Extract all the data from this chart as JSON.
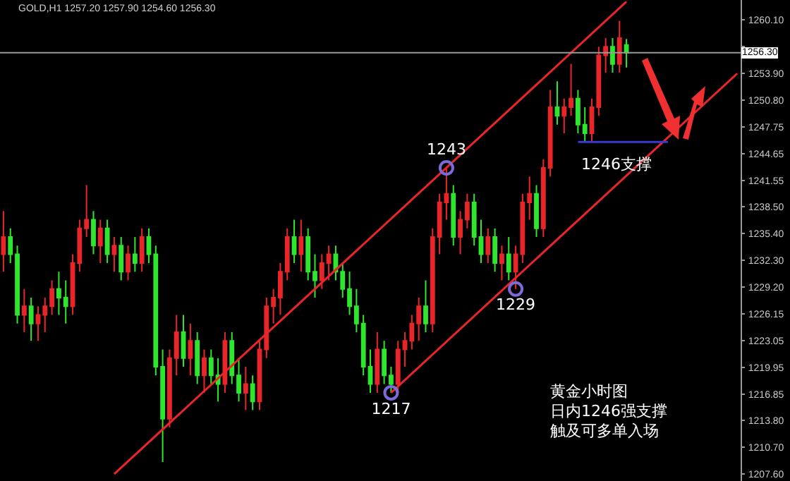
{
  "chart_data": {
    "type": "candlestick",
    "title": "GOLD,H1 1257.20 1257.90 1254.60 1256.30",
    "categories": [
      null,
      null,
      null,
      null,
      null,
      null,
      null,
      null,
      null,
      null,
      null,
      null,
      null,
      null,
      null,
      null,
      null,
      null,
      null,
      null,
      null,
      null,
      null,
      null,
      null,
      null,
      null,
      null,
      null,
      null,
      null,
      null,
      null,
      null,
      null,
      null,
      null,
      null,
      null,
      null,
      null,
      null,
      null,
      null,
      null,
      null,
      null,
      null,
      null,
      null,
      null,
      null,
      null,
      null,
      null,
      null,
      null,
      null,
      null,
      null,
      null,
      null,
      null,
      null,
      null,
      null,
      null,
      null,
      null,
      null,
      null,
      null,
      null,
      null,
      null,
      null,
      null,
      null,
      null,
      null,
      null,
      null,
      null,
      null,
      null,
      null,
      null,
      null,
      null,
      null,
      null,
      null,
      null,
      null,
      null,
      null,
      null,
      null,
      null,
      null,
      null,
      null,
      null,
      null,
      null,
      null,
      null
    ],
    "ohlc": [
      [
        1233,
        1238,
        1231,
        1235
      ],
      [
        1235,
        1236,
        1232,
        1233
      ],
      [
        1233,
        1234,
        1225,
        1226
      ],
      [
        1226,
        1229,
        1224,
        1227
      ],
      [
        1227,
        1228,
        1223,
        1225
      ],
      [
        1225,
        1227,
        1223,
        1226
      ],
      [
        1226,
        1228,
        1224,
        1227
      ],
      [
        1227,
        1230,
        1226,
        1229
      ],
      [
        1229,
        1231,
        1226,
        1228
      ],
      [
        1228,
        1230,
        1225,
        1227
      ],
      [
        1227,
        1233,
        1226,
        1232
      ],
      [
        1232,
        1237,
        1231,
        1236
      ],
      [
        1236,
        1241,
        1235,
        1237
      ],
      [
        1237,
        1238,
        1233,
        1234
      ],
      [
        1234,
        1237,
        1232,
        1236
      ],
      [
        1236,
        1237,
        1232,
        1233
      ],
      [
        1233,
        1235,
        1231,
        1234
      ],
      [
        1234,
        1235,
        1230,
        1231
      ],
      [
        1231,
        1234,
        1230,
        1233
      ],
      [
        1233,
        1235,
        1231,
        1232
      ],
      [
        1232,
        1236,
        1231,
        1235
      ],
      [
        1235,
        1236,
        1232,
        1233
      ],
      [
        1233,
        1234,
        1219,
        1220
      ],
      [
        1220,
        1222,
        1209,
        1214
      ],
      [
        1214,
        1222,
        1213,
        1221
      ],
      [
        1221,
        1226,
        1219,
        1224
      ],
      [
        1224,
        1226,
        1220,
        1221
      ],
      [
        1221,
        1225,
        1219,
        1223
      ],
      [
        1223,
        1224,
        1218,
        1219
      ],
      [
        1219,
        1222,
        1217,
        1221
      ],
      [
        1221,
        1222,
        1218,
        1219
      ],
      [
        1219,
        1221,
        1216,
        1218
      ],
      [
        1218,
        1224,
        1217,
        1223
      ],
      [
        1223,
        1224,
        1218,
        1219
      ],
      [
        1219,
        1221,
        1216,
        1217
      ],
      [
        1217,
        1220,
        1215,
        1218
      ],
      [
        1218,
        1219,
        1215,
        1216
      ],
      [
        1216,
        1223,
        1215,
        1222
      ],
      [
        1222,
        1228,
        1221,
        1227
      ],
      [
        1227,
        1229,
        1225,
        1228
      ],
      [
        1228,
        1232,
        1226,
        1231
      ],
      [
        1231,
        1236,
        1230,
        1235
      ],
      [
        1235,
        1237,
        1232,
        1233
      ],
      [
        1233,
        1237,
        1231,
        1235
      ],
      [
        1235,
        1236,
        1230,
        1231
      ],
      [
        1231,
        1233,
        1228,
        1230
      ],
      [
        1230,
        1233,
        1229,
        1232
      ],
      [
        1232,
        1234,
        1230,
        1233
      ],
      [
        1233,
        1234,
        1230,
        1231
      ],
      [
        1231,
        1232,
        1228,
        1229
      ],
      [
        1229,
        1231,
        1226,
        1227
      ],
      [
        1227,
        1229,
        1224,
        1225
      ],
      [
        1225,
        1226,
        1219,
        1220
      ],
      [
        1220,
        1222,
        1217,
        1218
      ],
      [
        1218,
        1224,
        1217,
        1222
      ],
      [
        1222,
        1223,
        1218,
        1219
      ],
      [
        1219,
        1220,
        1217,
        1218
      ],
      [
        1218,
        1223,
        1217,
        1222
      ],
      [
        1222,
        1224,
        1220,
        1223
      ],
      [
        1223,
        1226,
        1222,
        1225
      ],
      [
        1225,
        1228,
        1223,
        1227
      ],
      [
        1227,
        1230,
        1224,
        1225
      ],
      [
        1225,
        1236,
        1224,
        1235
      ],
      [
        1235,
        1240,
        1233,
        1239
      ],
      [
        1239,
        1243,
        1237,
        1240
      ],
      [
        1240,
        1241,
        1234,
        1235
      ],
      [
        1235,
        1238,
        1233,
        1237
      ],
      [
        1237,
        1240,
        1236,
        1239
      ],
      [
        1239,
        1240,
        1234,
        1235
      ],
      [
        1235,
        1237,
        1232,
        1233
      ],
      [
        1233,
        1236,
        1232,
        1235
      ],
      [
        1235,
        1236,
        1231,
        1232
      ],
      [
        1232,
        1234,
        1230,
        1233
      ],
      [
        1233,
        1235,
        1230,
        1231
      ],
      [
        1231,
        1234,
        1229,
        1233
      ],
      [
        1233,
        1240,
        1232,
        1239
      ],
      [
        1239,
        1242,
        1237,
        1240
      ],
      [
        1240,
        1241,
        1235,
        1236
      ],
      [
        1236,
        1244,
        1235,
        1243
      ],
      [
        1243,
        1252,
        1242,
        1250
      ],
      [
        1250,
        1253,
        1248,
        1249
      ],
      [
        1249,
        1251,
        1247,
        1250
      ],
      [
        1250,
        1255,
        1249,
        1251
      ],
      [
        1251,
        1252,
        1247,
        1248
      ],
      [
        1248,
        1250,
        1246,
        1247
      ],
      [
        1247,
        1251,
        1246,
        1250
      ],
      [
        1250,
        1257,
        1249,
        1256
      ],
      [
        1256,
        1258,
        1254,
        1257
      ],
      [
        1257,
        1258,
        1254,
        1255
      ],
      [
        1255,
        1260,
        1254,
        1258
      ],
      [
        1257.2,
        1257.9,
        1254.6,
        1256.3
      ],
      null,
      null,
      null,
      null,
      null,
      null,
      null,
      null,
      null,
      null,
      null,
      null,
      null,
      null,
      null,
      null
    ],
    "colors": [
      "#e8262a",
      "#2ee62e",
      "#2ee62e",
      "#e8262a",
      "#2ee62e",
      "#e8262a",
      "#e8262a",
      "#e8262a",
      "#2ee62e",
      "#2ee62e",
      "#e8262a",
      "#e8262a",
      "#e8262a",
      "#2ee62e",
      "#e8262a",
      "#2ee62e",
      "#e8262a",
      "#2ee62e",
      "#e8262a",
      "#2ee62e",
      "#e8262a",
      "#2ee62e",
      "#2ee62e",
      "#2ee62e",
      "#e8262a",
      "#e8262a",
      "#2ee62e",
      "#e8262a",
      "#2ee62e",
      "#e8262a",
      "#2ee62e",
      "#2ee62e",
      "#e8262a",
      "#2ee62e",
      "#2ee62e",
      "#e8262a",
      "#2ee62e",
      "#e8262a",
      "#e8262a",
      "#e8262a",
      "#e8262a",
      "#e8262a",
      "#2ee62e",
      "#e8262a",
      "#2ee62e",
      "#2ee62e",
      "#e8262a",
      "#e8262a",
      "#2ee62e",
      "#2ee62e",
      "#2ee62e",
      "#2ee62e",
      "#2ee62e",
      "#2ee62e",
      "#e8262a",
      "#2ee62e",
      "#2ee62e",
      "#e8262a",
      "#e8262a",
      "#e8262a",
      "#e8262a",
      "#2ee62e",
      "#e8262a",
      "#e8262a",
      "#e8262a",
      "#2ee62e",
      "#e8262a",
      "#e8262a",
      "#2ee62e",
      "#2ee62e",
      "#e8262a",
      "#2ee62e",
      "#e8262a",
      "#2ee62e",
      "#e8262a",
      "#e8262a",
      "#e8262a",
      "#2ee62e",
      "#e8262a",
      "#e8262a",
      "#2ee62e",
      "#e8262a",
      "#e8262a",
      "#2ee62e",
      "#2ee62e",
      "#e8262a",
      "#e8262a",
      "#e8262a",
      "#2ee62e",
      "#e8262a",
      "#2ee62e",
      null,
      null,
      null,
      null,
      null,
      null,
      null,
      null,
      null,
      null,
      null,
      null,
      null,
      null,
      null,
      null
    ],
    "series": [
      {
        "type": "line",
        "color": "#e8262a",
        "values": [
          null,
          null,
          null,
          null,
          null,
          null,
          null,
          null,
          null,
          null,
          null,
          null,
          null,
          null,
          null,
          null,
          1207.6,
          null,
          null,
          null,
          null,
          null,
          null,
          null,
          null,
          null,
          null,
          null,
          null,
          null,
          null,
          null,
          null,
          null,
          null,
          null,
          null,
          null,
          null,
          null,
          null,
          null,
          null,
          null,
          null,
          null,
          null,
          null,
          null,
          null,
          null,
          null,
          null,
          null,
          null,
          null,
          null,
          null,
          null,
          null,
          null,
          null,
          null,
          null,
          null,
          null,
          null,
          null,
          null,
          null,
          null,
          null,
          null,
          null,
          null,
          null,
          null,
          null,
          null,
          null,
          null,
          null,
          null,
          null,
          null,
          null,
          null,
          null,
          null,
          null,
          1262.2,
          null,
          null,
          null,
          null,
          null,
          null,
          null,
          null,
          null,
          null,
          null,
          null,
          null,
          null,
          null,
          null
        ]
      },
      {
        "type": "line",
        "color": "#e8262a",
        "values": [
          null,
          null,
          null,
          null,
          null,
          null,
          null,
          null,
          null,
          null,
          null,
          null,
          null,
          null,
          null,
          null,
          null,
          null,
          null,
          null,
          null,
          null,
          null,
          null,
          null,
          null,
          null,
          null,
          null,
          null,
          null,
          null,
          null,
          null,
          null,
          null,
          null,
          null,
          null,
          null,
          null,
          null,
          null,
          null,
          null,
          null,
          null,
          null,
          null,
          null,
          null,
          null,
          null,
          null,
          null,
          null,
          1217,
          null,
          null,
          null,
          null,
          null,
          null,
          null,
          null,
          null,
          null,
          null,
          null,
          null,
          null,
          null,
          null,
          null,
          null,
          null,
          null,
          null,
          null,
          null,
          null,
          null,
          null,
          null,
          null,
          null,
          null,
          null,
          null,
          null,
          null,
          null,
          null,
          null,
          null,
          null,
          null,
          null,
          null,
          null,
          null,
          null,
          null,
          null,
          null,
          null,
          1253.9
        ]
      },
      {
        "type": "line",
        "name": "1246支撑",
        "color": "#3a3ad0",
        "values": [
          null,
          null,
          null,
          null,
          null,
          null,
          null,
          null,
          null,
          null,
          null,
          null,
          null,
          null,
          null,
          null,
          null,
          null,
          null,
          null,
          null,
          null,
          null,
          null,
          null,
          null,
          null,
          null,
          null,
          null,
          null,
          null,
          null,
          null,
          null,
          null,
          null,
          null,
          null,
          null,
          null,
          null,
          null,
          null,
          null,
          null,
          null,
          null,
          null,
          null,
          null,
          null,
          null,
          null,
          null,
          null,
          null,
          null,
          null,
          null,
          null,
          null,
          null,
          null,
          null,
          null,
          null,
          null,
          null,
          null,
          null,
          null,
          null,
          null,
          null,
          null,
          null,
          null,
          null,
          null,
          null,
          null,
          null,
          1246,
          null,
          null,
          null,
          null,
          null,
          null,
          null,
          null,
          null,
          null,
          null,
          null,
          1246,
          null,
          null,
          null,
          null,
          null,
          null,
          null,
          null,
          null,
          null
        ]
      },
      {
        "type": "scatter",
        "marker": "circle",
        "color": "#7b6bd8",
        "values": [
          null,
          null,
          null,
          null,
          null,
          null,
          null,
          null,
          null,
          null,
          null,
          null,
          null,
          null,
          null,
          null,
          null,
          null,
          null,
          null,
          null,
          null,
          null,
          null,
          null,
          null,
          null,
          null,
          null,
          null,
          null,
          null,
          null,
          null,
          null,
          null,
          null,
          null,
          null,
          null,
          null,
          null,
          null,
          null,
          null,
          null,
          null,
          null,
          null,
          null,
          null,
          null,
          null,
          null,
          null,
          null,
          1217,
          null,
          null,
          null,
          null,
          null,
          null,
          null,
          1243,
          null,
          null,
          null,
          null,
          null,
          null,
          null,
          null,
          null,
          1229,
          null,
          null,
          null,
          null,
          null,
          null,
          null,
          null,
          null,
          null,
          null,
          null,
          null,
          null,
          null,
          null,
          null,
          null,
          null,
          null,
          null,
          null,
          null,
          null,
          null,
          null,
          null,
          null,
          null,
          null,
          null,
          null
        ],
        "value_labels": [
          null,
          null,
          null,
          null,
          null,
          null,
          null,
          null,
          null,
          null,
          null,
          null,
          null,
          null,
          null,
          null,
          null,
          null,
          null,
          null,
          null,
          null,
          null,
          null,
          null,
          null,
          null,
          null,
          null,
          null,
          null,
          null,
          null,
          null,
          null,
          null,
          null,
          null,
          null,
          null,
          null,
          null,
          null,
          null,
          null,
          null,
          null,
          null,
          null,
          null,
          null,
          null,
          null,
          null,
          null,
          null,
          "1217",
          null,
          null,
          null,
          null,
          null,
          null,
          null,
          "1243",
          null,
          null,
          null,
          null,
          null,
          null,
          null,
          null,
          null,
          "1229",
          null,
          null,
          null,
          null,
          null,
          null,
          null,
          null,
          null,
          null,
          null,
          null,
          null,
          null,
          null,
          null,
          null,
          null,
          null,
          null,
          null,
          null,
          null,
          null,
          null,
          null,
          null,
          null,
          null,
          null,
          null,
          null
        ]
      }
    ],
    "ylim": [
      1206.8,
      1262.4
    ],
    "yticks": [
      {
        "value": 1260.1,
        "label": "1260.10"
      },
      {
        "value": 1257,
        "label": null
      },
      {
        "value": 1253.9,
        "label": "1253.90"
      },
      {
        "value": 1250.8,
        "label": "1250.80"
      },
      {
        "value": 1247.75,
        "label": "1247.75"
      },
      {
        "value": 1244.65,
        "label": "1244.65"
      },
      {
        "value": 1241.55,
        "label": "1241.55"
      },
      {
        "value": 1238.5,
        "label": "1238.50"
      },
      {
        "value": 1235.4,
        "label": "1235.40"
      },
      {
        "value": 1232.3,
        "label": "1232.30"
      },
      {
        "value": 1229.2,
        "label": "1229.20"
      },
      {
        "value": 1226.15,
        "label": "1226.15"
      },
      {
        "value": 1223.05,
        "label": "1223.05"
      },
      {
        "value": 1219.95,
        "label": "1219.95"
      },
      {
        "value": 1216.85,
        "label": "1216.85"
      },
      {
        "value": 1213.8,
        "label": "1213.80"
      },
      {
        "value": 1210.7,
        "label": "1210.70"
      },
      {
        "value": 1207.6,
        "label": "1207.60"
      }
    ],
    "ref_lines": [
      {
        "axis": "y",
        "value": 1256.3,
        "label": "1256.30",
        "color": "#9a9a9a"
      }
    ],
    "annotations": [
      "黄金小时图",
      "日内1246强支撑",
      "触及可多单入场"
    ],
    "tick_labels": "y"
  }
}
